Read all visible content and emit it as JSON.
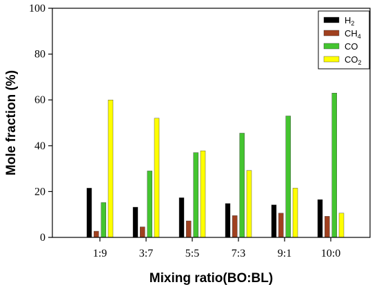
{
  "chart_data": {
    "type": "bar",
    "title": "",
    "xlabel": "Mixing ratio(BO:BL)",
    "ylabel": "Mole fraction (%)",
    "ylim": [
      0,
      100
    ],
    "yticks": [
      "0",
      "20",
      "40",
      "60",
      "80",
      "100"
    ],
    "categories": [
      "1:9",
      "3:7",
      "5:5",
      "7:3",
      "9:1",
      "10:0"
    ],
    "legend_position": "top-right",
    "grid": false,
    "series": [
      {
        "name": "H2",
        "label_main": "H",
        "label_sub": "2",
        "color": "#000000",
        "values": [
          21.5,
          13.2,
          17.3,
          14.8,
          14.2,
          16.5
        ]
      },
      {
        "name": "CH4",
        "label_main": "CH",
        "label_sub": "4",
        "color": "#a0401f",
        "values": [
          2.7,
          4.6,
          7.2,
          9.5,
          10.6,
          9.2
        ]
      },
      {
        "name": "CO",
        "label_main": "CO",
        "label_sub": "",
        "color": "#44c430",
        "values": [
          15.2,
          29.0,
          37.0,
          45.5,
          53.0,
          63.0
        ]
      },
      {
        "name": "CO2",
        "label_main": "CO",
        "label_sub": "2",
        "color": "#ffff00",
        "values": [
          60.0,
          52.0,
          37.8,
          29.2,
          21.5,
          10.6
        ]
      }
    ]
  }
}
